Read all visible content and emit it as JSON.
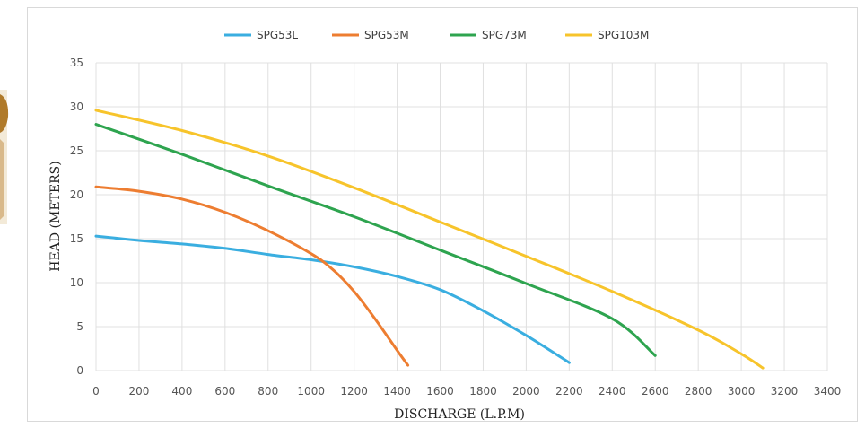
{
  "chart_data": {
    "type": "line",
    "title": "",
    "xlabel": "DISCHARGE (L.P.M)",
    "ylabel": "HEAD (METERS)",
    "xlim": [
      0,
      3400
    ],
    "ylim": [
      0,
      35
    ],
    "xticks": [
      0,
      200,
      400,
      600,
      800,
      1000,
      1200,
      1400,
      1600,
      1800,
      2000,
      2200,
      2400,
      2600,
      2800,
      3000,
      3200,
      3400
    ],
    "yticks": [
      0,
      5,
      10,
      15,
      20,
      25,
      30,
      35
    ],
    "grid": true,
    "legend": "top",
    "series": [
      {
        "name": "SPG53L",
        "color": "#3aaee0",
        "points": [
          [
            0,
            15.3
          ],
          [
            200,
            14.8
          ],
          [
            400,
            14.4
          ],
          [
            600,
            13.9
          ],
          [
            800,
            13.2
          ],
          [
            1000,
            12.6
          ],
          [
            1200,
            11.8
          ],
          [
            1400,
            10.7
          ],
          [
            1600,
            9.2
          ],
          [
            1800,
            6.8
          ],
          [
            2000,
            4.0
          ],
          [
            2200,
            0.9
          ]
        ]
      },
      {
        "name": "SPG53M",
        "color": "#ed7d31",
        "points": [
          [
            0,
            20.9
          ],
          [
            200,
            20.4
          ],
          [
            400,
            19.5
          ],
          [
            600,
            18.0
          ],
          [
            800,
            15.9
          ],
          [
            1000,
            13.3
          ],
          [
            1100,
            11.5
          ],
          [
            1200,
            9.0
          ],
          [
            1300,
            5.8
          ],
          [
            1400,
            2.3
          ],
          [
            1450,
            0.6
          ]
        ]
      },
      {
        "name": "SPG73M",
        "color": "#2ea44f",
        "points": [
          [
            0,
            28.0
          ],
          [
            400,
            24.6
          ],
          [
            800,
            21.0
          ],
          [
            1200,
            17.5
          ],
          [
            1600,
            13.7
          ],
          [
            2000,
            9.9
          ],
          [
            2400,
            5.9
          ],
          [
            2600,
            1.7
          ]
        ]
      },
      {
        "name": "SPG103M",
        "color": "#f7c42b",
        "points": [
          [
            0,
            29.6
          ],
          [
            400,
            27.3
          ],
          [
            800,
            24.4
          ],
          [
            1200,
            20.8
          ],
          [
            1600,
            16.9
          ],
          [
            2000,
            13.0
          ],
          [
            2400,
            9.0
          ],
          [
            2800,
            4.6
          ],
          [
            3000,
            1.9
          ],
          [
            3100,
            0.3
          ]
        ]
      }
    ]
  },
  "colors": {
    "grid": "#e0e0e0",
    "frame": "#d9d9d9",
    "photo_edge": "#b07a2a"
  }
}
